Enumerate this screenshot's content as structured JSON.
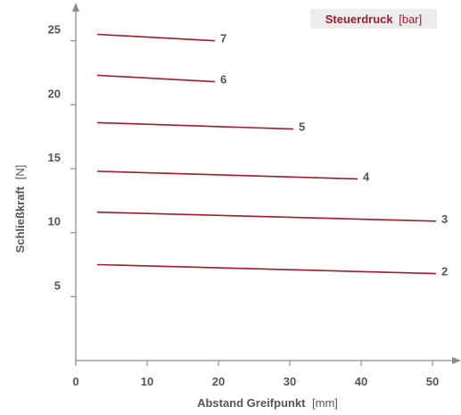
{
  "colors": {
    "series": "#a01c2c",
    "axis": "#8c8c8c",
    "text": "#555555",
    "legend_bg": "#ececec"
  },
  "chart_data": {
    "type": "line",
    "title": "",
    "xlabel": {
      "main": "Abstand Greifpunkt",
      "unit": "[mm]"
    },
    "ylabel": {
      "main": "Schließkraft",
      "unit": "[N]"
    },
    "legend": {
      "title": "Steuerdruck",
      "unit": "[bar]",
      "placement": "top-right"
    },
    "xlim": [
      0,
      50
    ],
    "ylim": [
      0,
      27
    ],
    "xticks": [
      "0",
      "10",
      "20",
      "30",
      "40",
      "50"
    ],
    "yticks": [
      "5",
      "10",
      "15",
      "20",
      "25"
    ],
    "grid": false,
    "series": [
      {
        "name": "2",
        "x": [
          3,
          50.5
        ],
        "y": [
          7.5,
          6.8
        ]
      },
      {
        "name": "3",
        "x": [
          3,
          50.5
        ],
        "y": [
          11.6,
          10.9
        ]
      },
      {
        "name": "4",
        "x": [
          3,
          39.5
        ],
        "y": [
          14.8,
          14.2
        ]
      },
      {
        "name": "5",
        "x": [
          3,
          30.5
        ],
        "y": [
          18.6,
          18.1
        ]
      },
      {
        "name": "6",
        "x": [
          3,
          19.5
        ],
        "y": [
          22.3,
          21.8
        ]
      },
      {
        "name": "7",
        "x": [
          3,
          19.5
        ],
        "y": [
          25.5,
          25.0
        ]
      }
    ]
  }
}
